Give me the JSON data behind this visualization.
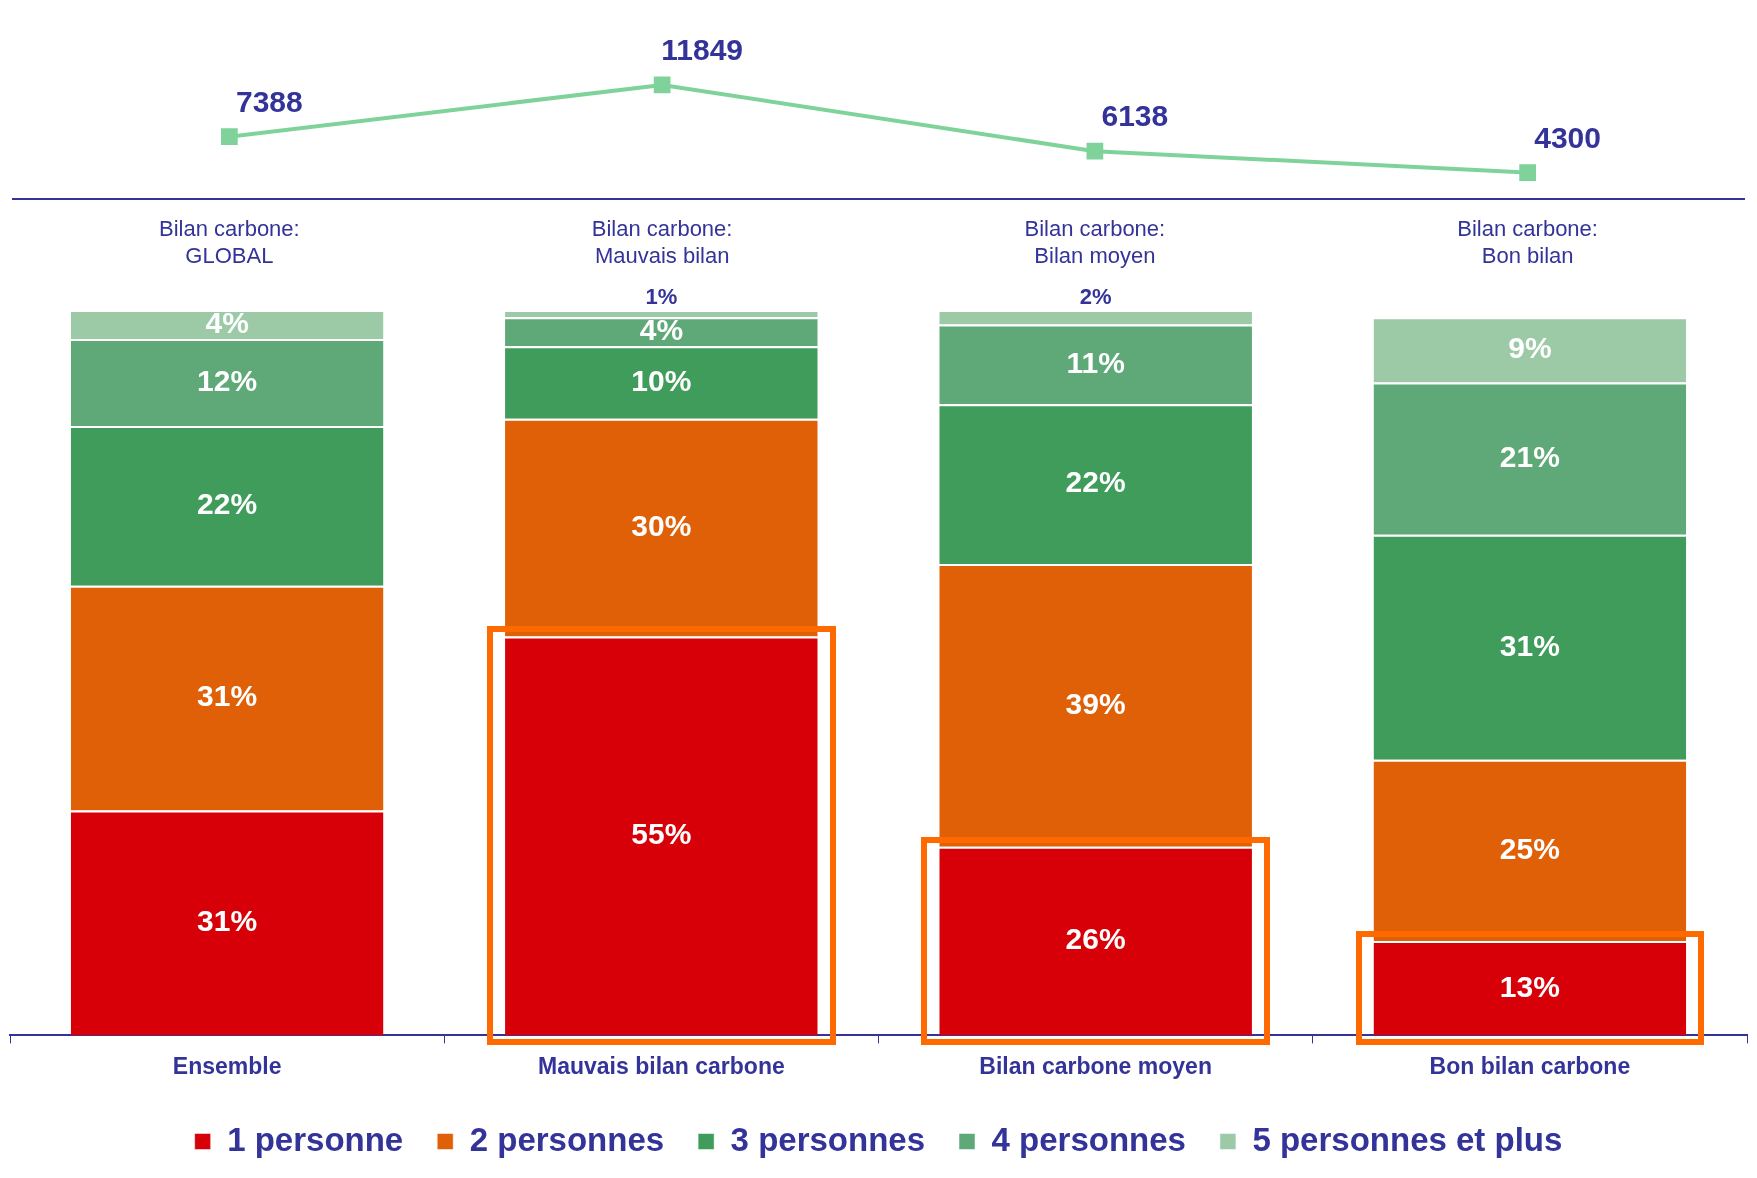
{
  "chart_data": [
    {
      "type": "line",
      "categories": [
        "Bilan carbone:\nGLOBAL",
        "Bilan carbone:\nMauvais bilan",
        "Bilan carbone:\nBilan moyen",
        "Bilan carbone:\nBon bilan"
      ],
      "series": [
        {
          "color": "#7fd39a",
          "values": [
            7388,
            11849,
            6138,
            4300
          ]
        }
      ],
      "marker": "square",
      "data_labels": true,
      "tick_labels": "x",
      "legend": false
    },
    {
      "type": "bar",
      "stacked": true,
      "categories": [
        "Ensemble",
        "Mauvais bilan carbone",
        "Bilan carbone moyen",
        "Bon bilan carbone"
      ],
      "series": [
        {
          "name": "1 personne",
          "color": "#d80008",
          "values": [
            31,
            55,
            26,
            13
          ],
          "value_labels": [
            "31%",
            "55%",
            "26%",
            "13%"
          ]
        },
        {
          "name": "2 personnes",
          "color": "#e06008",
          "values": [
            31,
            30,
            39,
            25
          ],
          "value_labels": [
            "31%",
            "30%",
            "39%",
            "25%"
          ]
        },
        {
          "name": "3 personnes",
          "color": "#3f9c5a",
          "values": [
            22,
            10,
            22,
            31
          ],
          "value_labels": [
            "22%",
            "10%",
            "22%",
            "31%"
          ]
        },
        {
          "name": "4 personnes",
          "color": "#5fa878",
          "values": [
            12,
            4,
            11,
            21
          ],
          "value_labels": [
            "12%",
            "4%",
            "11%",
            "21%"
          ]
        },
        {
          "name": "5 personnes et plus",
          "color": "#9ccaa6",
          "values": [
            4,
            1,
            2,
            9
          ],
          "value_labels": [
            "4%",
            "1%",
            "2%",
            "9%"
          ]
        }
      ],
      "tick_labels": "x",
      "legend": "bottom"
    }
  ]
}
